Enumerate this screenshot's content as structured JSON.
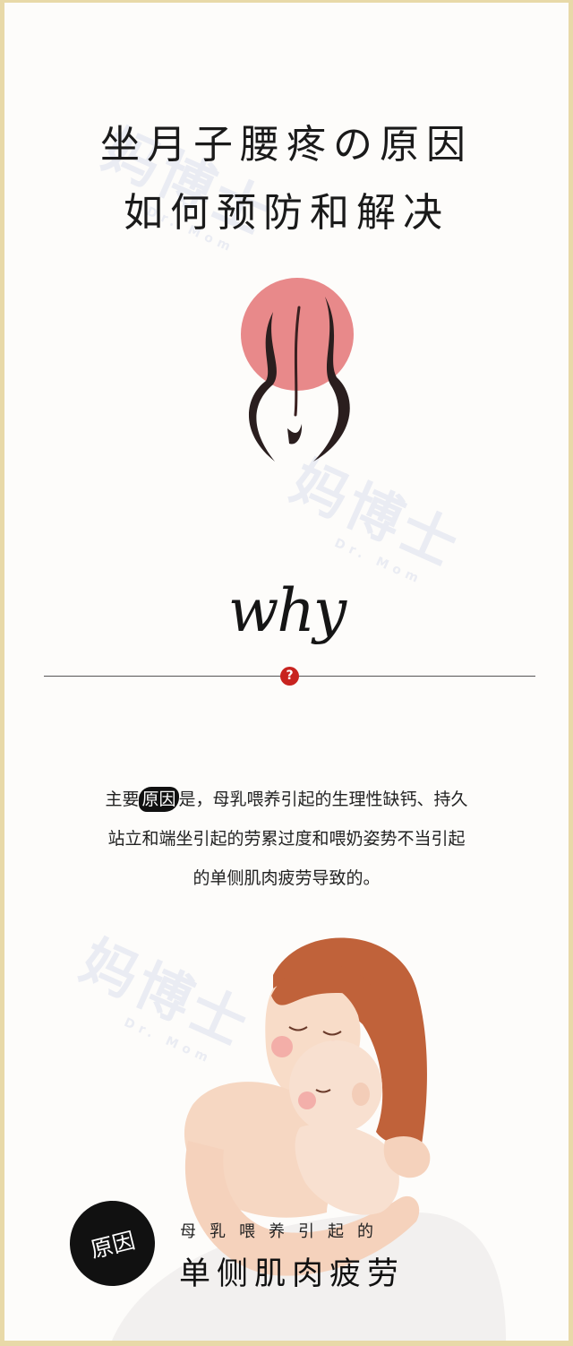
{
  "header": {
    "title_line1": "坐月子腰疼の原因",
    "title_line2": "如何预防和解决"
  },
  "watermark": {
    "brand": "妈博士",
    "brand_en": "Dr. Mom"
  },
  "why_section": {
    "heading": "why",
    "question_mark": "?"
  },
  "body": {
    "line1_prefix": "主要",
    "highlight": "原因",
    "line1_suffix": "是，母乳喂养引起的生理性缺钙、持久",
    "line2": "站立和端坐引起的劳累过度和喂奶姿势不当引起",
    "line3": "的单侧肌肉疲劳导致的。"
  },
  "caption": {
    "badge": "原因",
    "subtitle": "母乳喂养引起的",
    "title": "单侧肌肉疲劳"
  },
  "colors": {
    "frame": "#e8d9a8",
    "accent_pink": "#e8898a",
    "question_red": "#c8231f",
    "hair": "#c0623a"
  }
}
